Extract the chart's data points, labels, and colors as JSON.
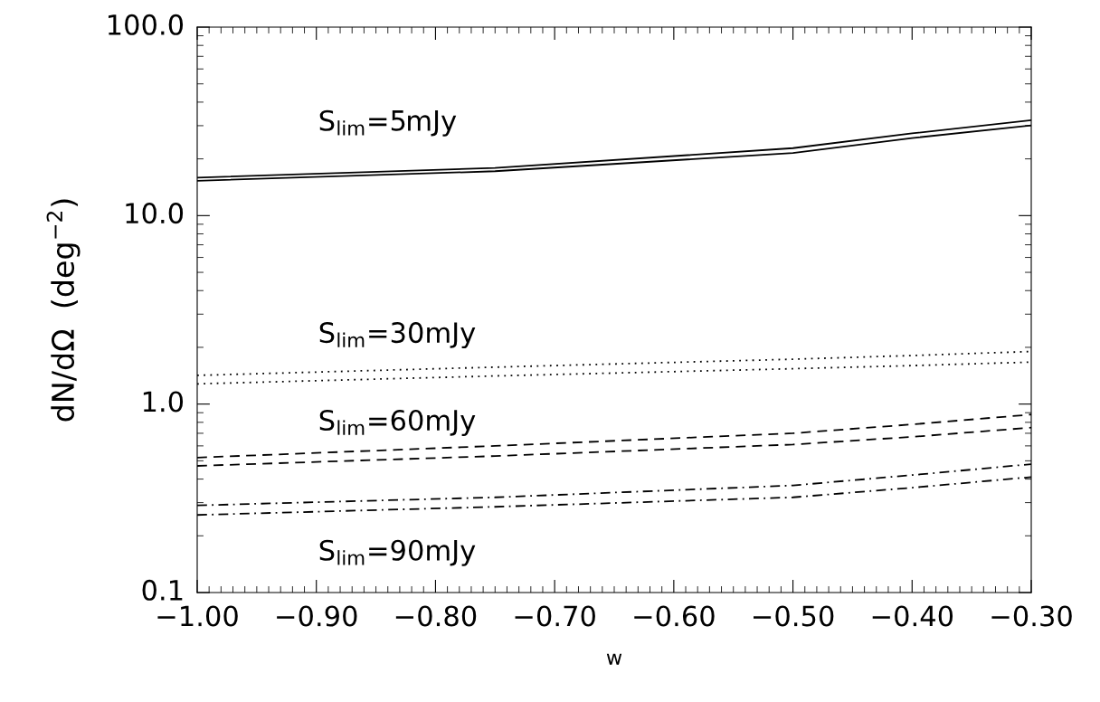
{
  "chart_data": {
    "type": "line",
    "xlabel": "w",
    "ylabel": "dN/dΩ  (deg$^{−2}$)",
    "log": "y",
    "grid": false,
    "legend": false,
    "marker": "none",
    "xlim": [
      -1.0,
      -0.3
    ],
    "ylim": [
      0.1,
      100.0
    ],
    "xticks": [
      {
        "value": -1.0,
        "label": "−1.00"
      },
      {
        "value": -0.9,
        "label": "−0.90"
      },
      {
        "value": -0.8,
        "label": "−0.80"
      },
      {
        "value": -0.7,
        "label": "−0.70"
      },
      {
        "value": -0.6,
        "label": "−0.60"
      },
      {
        "value": -0.5,
        "label": "−0.50"
      },
      {
        "value": -0.4,
        "label": "−0.40"
      },
      {
        "value": -0.3,
        "label": "−0.30"
      }
    ],
    "yticks": [
      {
        "value": 0.1,
        "label": "0.1"
      },
      {
        "value": 1.0,
        "label": "1.0"
      },
      {
        "value": 10.0,
        "label": "10.0"
      },
      {
        "value": 100.0,
        "label": "100.0"
      }
    ],
    "x": [
      -1.0,
      -0.75,
      -0.5,
      -0.4,
      -0.3
    ],
    "series": [
      {
        "color": "#000000",
        "line_style": "solid",
        "values": [
          15.9,
          17.9,
          22.8,
          27.3,
          32.1
        ]
      },
      {
        "color": "#000000",
        "line_style": "solid",
        "values": [
          15.3,
          17.2,
          21.5,
          25.8,
          30.1
        ]
      },
      {
        "color": "#000000",
        "line_style": "dotted",
        "values": [
          1.42,
          1.57,
          1.73,
          1.81,
          1.9
        ]
      },
      {
        "color": "#000000",
        "line_style": "dotted",
        "values": [
          1.28,
          1.41,
          1.54,
          1.6,
          1.67
        ]
      },
      {
        "color": "#000000",
        "line_style": "dashed",
        "values": [
          0.52,
          0.6,
          0.7,
          0.78,
          0.88
        ]
      },
      {
        "color": "#000000",
        "line_style": "dashed",
        "values": [
          0.47,
          0.53,
          0.61,
          0.67,
          0.75
        ]
      },
      {
        "color": "#000000",
        "line_style": "dashdot",
        "values": [
          0.29,
          0.32,
          0.37,
          0.42,
          0.48
        ]
      },
      {
        "color": "#000000",
        "line_style": "dashdot",
        "values": [
          0.258,
          0.285,
          0.32,
          0.36,
          0.41
        ]
      }
    ],
    "annotations": [
      "S$_{lim}$=5mJy",
      "S$_{lim}$=30mJy",
      "S$_{lim}$=60mJy",
      "S$_{lim}$=90mJy"
    ]
  }
}
